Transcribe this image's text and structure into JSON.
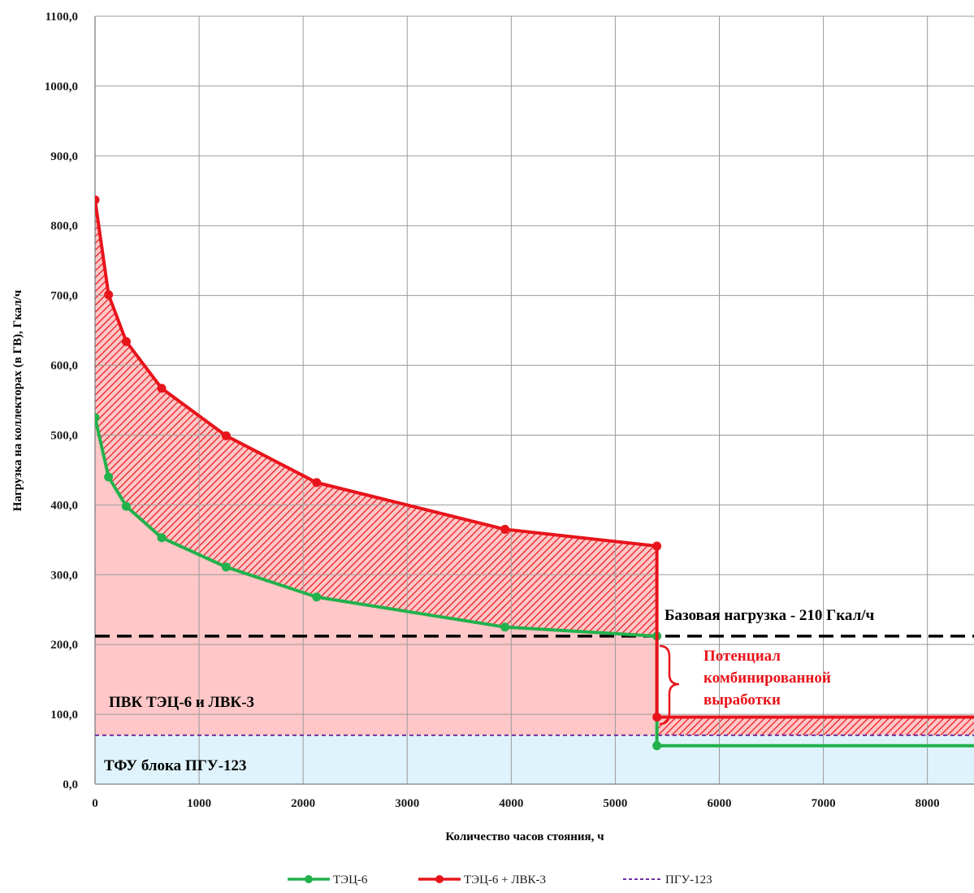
{
  "chart_data": {
    "type": "line",
    "xlabel": "Количество  часов  стояния,  ч",
    "ylabel": "Нагрузка  на  коллекторах  (в ГВ), Гкал/ч",
    "xlim": [
      0,
      8760
    ],
    "ylim": [
      0,
      1100
    ],
    "x_ticks": [
      0,
      1000,
      2000,
      3000,
      4000,
      5000,
      6000,
      7000,
      8000
    ],
    "x_tick_labels": [
      "0",
      "1000",
      "2000",
      "3000",
      "4000",
      "5000",
      "6000",
      "7000",
      "8000"
    ],
    "y_ticks": [
      0,
      100,
      200,
      300,
      400,
      500,
      600,
      700,
      800,
      900,
      1000,
      1100
    ],
    "y_tick_labels": [
      "0,0",
      "100,0",
      "200,0",
      "300,0",
      "400,0",
      "500,0",
      "600,0",
      "700,0",
      "800,0",
      "900,0",
      "1000,0",
      "1100,0"
    ],
    "grid": true,
    "legend_position": "bottom",
    "series": [
      {
        "name": "ТЭЦ-6",
        "color": "#22b14c",
        "x": [
          0,
          130,
          300,
          640,
          1260,
          2130,
          3940,
          5400,
          5400,
          8760
        ],
        "y": [
          525,
          440,
          398,
          353,
          311,
          268,
          225,
          212,
          55,
          55
        ],
        "markers": [
          [
            0,
            525
          ],
          [
            130,
            440
          ],
          [
            300,
            398
          ],
          [
            640,
            353
          ],
          [
            1260,
            311
          ],
          [
            2130,
            268
          ],
          [
            3940,
            225
          ],
          [
            5400,
            212
          ],
          [
            5400,
            55
          ]
        ]
      },
      {
        "name": "ТЭЦ-6 + ЛВК-3",
        "color": "#e8141b",
        "x": [
          0,
          130,
          300,
          640,
          1260,
          2130,
          3940,
          5400,
          5400,
          8760
        ],
        "y": [
          837,
          701,
          634,
          567,
          499,
          432,
          365,
          341,
          96,
          96
        ],
        "markers": [
          [
            0,
            837
          ],
          [
            130,
            701
          ],
          [
            300,
            634
          ],
          [
            640,
            567
          ],
          [
            1260,
            499
          ],
          [
            2130,
            432
          ],
          [
            3940,
            365
          ],
          [
            5400,
            341
          ],
          [
            5400,
            96
          ]
        ]
      },
      {
        "name": "ПГУ-123",
        "color": "#7030a0",
        "style": "dashed",
        "x": [
          0,
          8760
        ],
        "y": [
          70,
          70
        ]
      }
    ],
    "base_load": {
      "value": 212,
      "color": "#000000",
      "label": "Базовая нагрузка - 210  Гкал/ч"
    },
    "annotations": {
      "pvk_label": "ПВК ТЭЦ-6 и ЛВК-3",
      "tfu_label": "ТФУ блока ПГУ-123",
      "potential_line1": "Потенциал",
      "potential_line2": "комбинированной",
      "potential_line3": "выработки"
    },
    "fills": {
      "pvk_area_color": "#ffc7c7",
      "tfu_area_color": "#def3fb",
      "hatch_color": "#e8141b"
    }
  }
}
